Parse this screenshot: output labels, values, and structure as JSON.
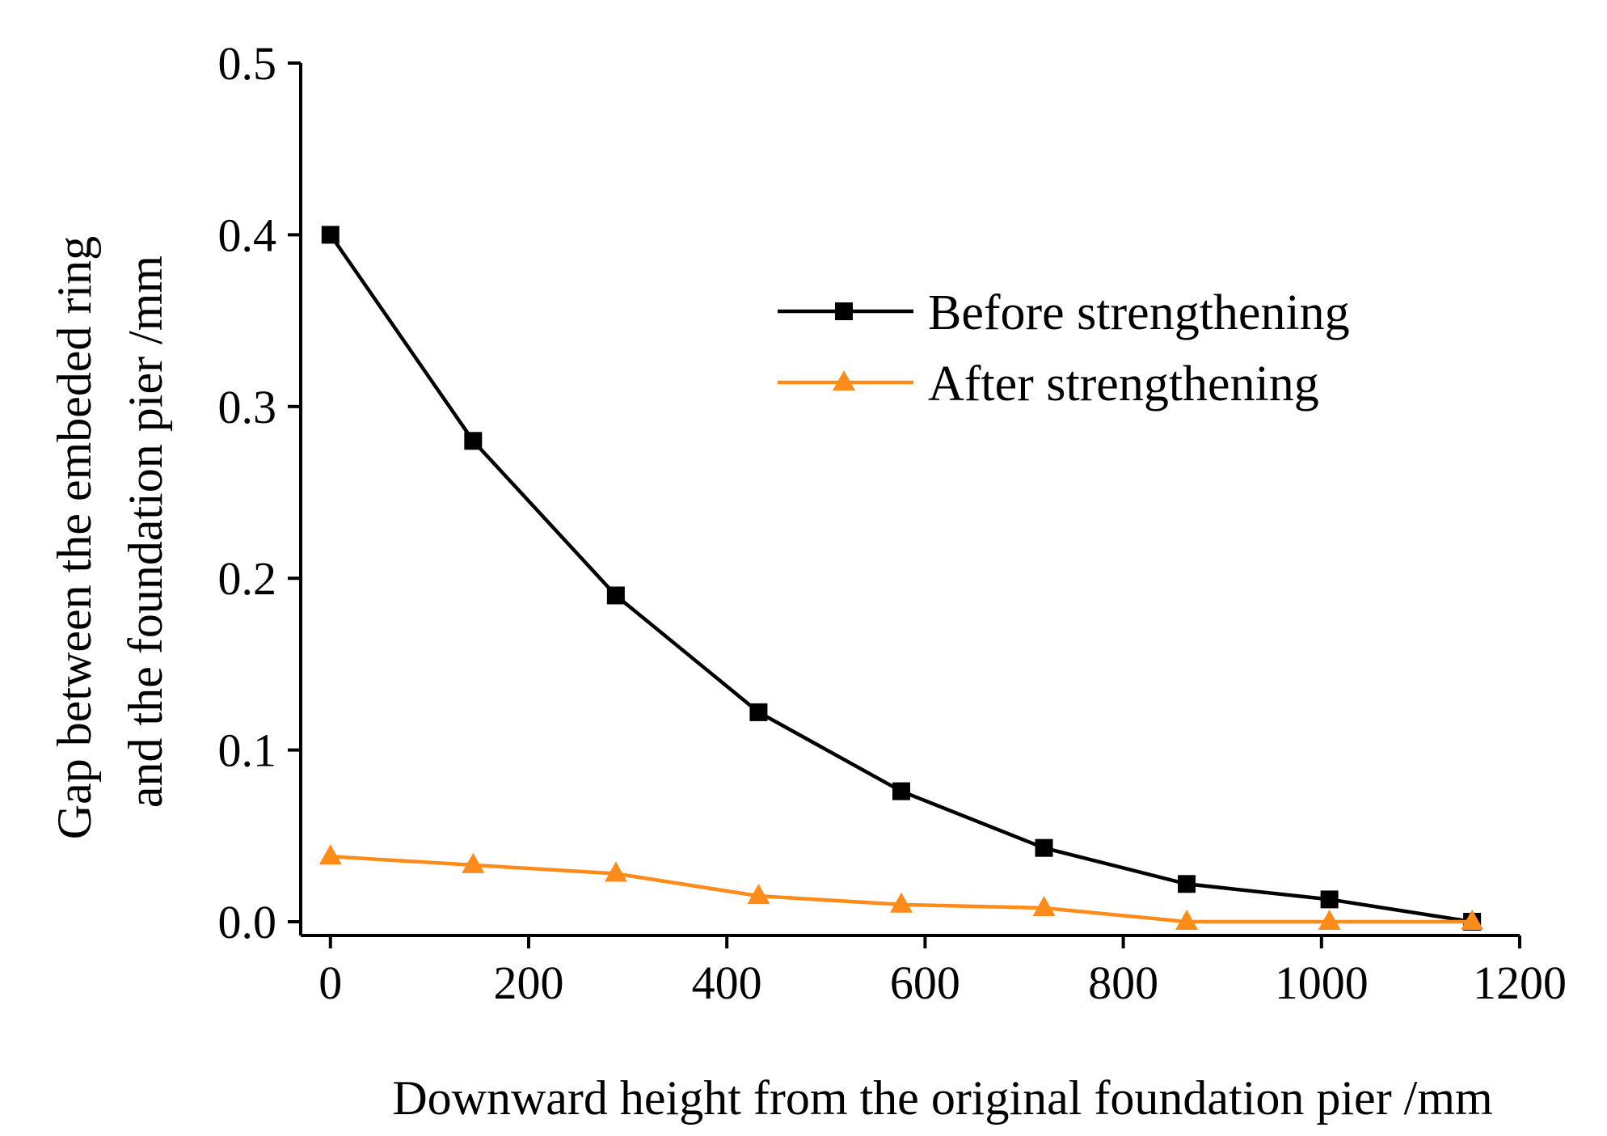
{
  "chart_data": {
    "type": "line",
    "title": "",
    "xlabel": "Downward height from the original foundation pier /mm",
    "ylabel_lines": [
      "Gap between the embeded ring",
      "and the foundation pier /mm"
    ],
    "xlim": [
      -30,
      1200
    ],
    "ylim": [
      -0.008,
      0.5
    ],
    "xticks": [
      0,
      200,
      400,
      600,
      800,
      1000,
      1200
    ],
    "yticks": [
      0.0,
      0.1,
      0.2,
      0.3,
      0.4,
      0.5
    ],
    "xtick_labels": [
      "0",
      "200",
      "400",
      "600",
      "800",
      "1000",
      "1200"
    ],
    "ytick_labels": [
      "0.0",
      "0.1",
      "0.2",
      "0.3",
      "0.4",
      "0.5"
    ],
    "grid": false,
    "legend_position": "top-right",
    "x": [
      0,
      144,
      288,
      432,
      576,
      720,
      864,
      1008,
      1152
    ],
    "series": [
      {
        "name": "Before strengthening",
        "marker": "square",
        "color": "#000000",
        "values": [
          0.4,
          0.28,
          0.19,
          0.122,
          0.076,
          0.043,
          0.022,
          0.013,
          0.0
        ]
      },
      {
        "name": "After strengthening",
        "marker": "triangle",
        "color": "#ff8c1a",
        "values": [
          0.038,
          0.033,
          0.028,
          0.015,
          0.01,
          0.008,
          0.0,
          0.0,
          0.0
        ]
      }
    ]
  }
}
